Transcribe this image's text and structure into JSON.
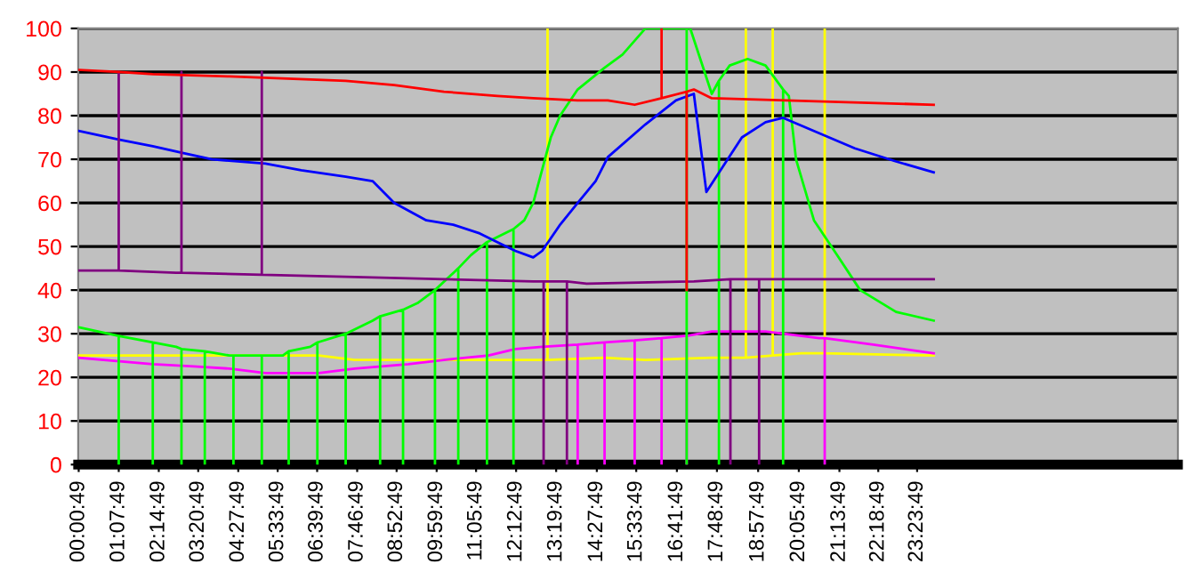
{
  "chart_data": {
    "type": "line",
    "ylim": [
      0,
      100
    ],
    "yticks": [
      0,
      10,
      20,
      30,
      40,
      50,
      60,
      70,
      80,
      90,
      100
    ],
    "xlim": [
      0,
      30.67
    ],
    "xticks": [
      {
        "value": 0.0136,
        "label": "00:00:49"
      },
      {
        "value": 1.1303,
        "label": "01:07:49"
      },
      {
        "value": 2.2469,
        "label": "02:14:49"
      },
      {
        "value": 3.3469,
        "label": "03:20:49"
      },
      {
        "value": 4.4636,
        "label": "04:27:49"
      },
      {
        "value": 5.5636,
        "label": "05:33:49"
      },
      {
        "value": 6.6636,
        "label": "06:39:49"
      },
      {
        "value": 7.7803,
        "label": "07:46:49"
      },
      {
        "value": 8.8803,
        "label": "08:52:49"
      },
      {
        "value": 9.9969,
        "label": "09:59:49"
      },
      {
        "value": 11.0969,
        "label": "11:05:49"
      },
      {
        "value": 12.2136,
        "label": "12:12:49"
      },
      {
        "value": 13.3303,
        "label": "13:19:49"
      },
      {
        "value": 14.4636,
        "label": "14:27:49"
      },
      {
        "value": 15.5636,
        "label": "15:33:49"
      },
      {
        "value": 16.6969,
        "label": "16:41:49"
      },
      {
        "value": 17.8136,
        "label": "17:48:49"
      },
      {
        "value": 18.9636,
        "label": "18:57:49"
      },
      {
        "value": 20.0969,
        "label": "20:05:49"
      },
      {
        "value": 21.2303,
        "label": "21:13:49"
      },
      {
        "value": 22.3136,
        "label": "22:18:49"
      },
      {
        "value": 23.3969,
        "label": "23:23:49"
      }
    ],
    "grid": "y",
    "marker": "none",
    "line_style": "solid",
    "series": [
      {
        "color": "#ffff00",
        "x": [
          0.01,
          6.71,
          7.71,
          13.09,
          13.09,
          13.09,
          14.68,
          15.82,
          17.67,
          18.62,
          18.62,
          18.62,
          19.37,
          19.37,
          19.37,
          20.17,
          20.82,
          20.82,
          20.82,
          23.86
        ],
        "values": [
          25,
          25,
          24,
          24,
          100,
          24,
          24.5,
          24,
          24.5,
          24.5,
          100,
          24.5,
          25,
          100,
          25,
          25.5,
          25.5,
          100,
          25.5,
          25
        ]
      },
      {
        "color": "#ff00ff",
        "x": [
          0.01,
          2.08,
          3.22,
          4.22,
          5.22,
          6.71,
          7.71,
          9.21,
          10.2,
          11.44,
          12.19,
          12.94,
          13.93,
          13.93,
          13.93,
          14.68,
          14.68,
          14.68,
          15.52,
          15.52,
          15.52,
          16.27,
          16.27,
          16.27,
          16.92,
          16.97,
          16.97,
          16.97,
          17.67,
          19.17,
          20.67,
          20.82,
          20.82,
          20.82,
          22.17,
          23.86
        ],
        "values": [
          24.5,
          23,
          22.5,
          22,
          21,
          21,
          22,
          23,
          24,
          25,
          26.5,
          27,
          27.5,
          0,
          27.5,
          28,
          0,
          28,
          28.5,
          0,
          28.5,
          29,
          0,
          29,
          29.5,
          29.5,
          0,
          29.5,
          30.5,
          30.5,
          29,
          29,
          0,
          29,
          27.5,
          25.5
        ]
      },
      {
        "color": "#00ff00",
        "x": [
          0.01,
          1.13,
          1.13,
          1.13,
          2.08,
          2.08,
          2.08,
          2.73,
          2.88,
          2.88,
          2.88,
          3.53,
          3.53,
          3.53,
          4.22,
          4.33,
          4.33,
          4.33,
          5.12,
          5.12,
          5.12,
          5.71,
          5.87,
          5.87,
          5.87,
          6.47,
          6.67,
          6.67,
          6.67,
          7.46,
          7.46,
          7.46,
          8.21,
          8.42,
          8.42,
          8.42,
          9.06,
          9.06,
          9.06,
          9.46,
          9.95,
          9.95,
          9.95,
          10.6,
          10.6,
          10.6,
          10.95,
          11.4,
          11.4,
          11.4,
          12.14,
          12.14,
          12.14,
          12.44,
          12.69,
          13.18,
          13.44,
          13.93,
          14.68,
          15.18,
          15.82,
          16.97,
          16.97,
          16.97,
          17.07,
          17.67,
          17.87,
          17.87,
          17.87,
          18.17,
          18.67,
          19.17,
          19.66,
          19.66,
          19.66,
          19.82,
          20.02,
          20.52,
          21.17,
          21.81,
          22.81,
          23.86
        ],
        "values": [
          31.5,
          29.5,
          0,
          29.5,
          28,
          0,
          28,
          27,
          26.5,
          0,
          26.5,
          26,
          0,
          26,
          25,
          25,
          0,
          25,
          25,
          0,
          25,
          25,
          26,
          0,
          26,
          27,
          28,
          0,
          28,
          30,
          0,
          30,
          33,
          34,
          0,
          34,
          35.5,
          0,
          35.5,
          37,
          40,
          0,
          40,
          45,
          0,
          45,
          48,
          51,
          0,
          51,
          54,
          0,
          54,
          56,
          60,
          75,
          80,
          86,
          91,
          94,
          100,
          100,
          0,
          100,
          100,
          85,
          88,
          0,
          88,
          91.5,
          93,
          91.5,
          86,
          0,
          86,
          84.5,
          70,
          56,
          48,
          40,
          35,
          33
        ]
      },
      {
        "color": "#0000ff",
        "x": [
          0.01,
          1.13,
          2.08,
          2.88,
          3.73,
          5.22,
          6.22,
          7.46,
          8.21,
          8.81,
          9.71,
          10.46,
          11.2,
          11.69,
          12.19,
          12.69,
          12.94,
          13.44,
          13.93,
          14.43,
          14.68,
          14.77,
          15.82,
          16.67,
          17.17,
          17.52,
          18.51,
          19.17,
          19.66,
          20.52,
          21.66,
          22.81,
          23.86
        ],
        "values": [
          76.5,
          74.5,
          73,
          71.5,
          70,
          69,
          67.5,
          66,
          65,
          60,
          56,
          55,
          53,
          51,
          49,
          47.5,
          49,
          55,
          60,
          65,
          69,
          70.5,
          78,
          83.5,
          85,
          62.5,
          75,
          78.5,
          79.5,
          76.5,
          72.5,
          69.5,
          67
        ]
      },
      {
        "color": "#800080",
        "x": [
          0.01,
          1.13,
          1.13,
          1.13,
          2.73,
          2.88,
          2.88,
          2.88,
          5.12,
          5.12,
          5.12,
          7.71,
          10.2,
          12.69,
          12.98,
          12.98,
          12.98,
          13.63,
          13.63,
          13.63,
          14.18,
          17.17,
          18.19,
          18.19,
          18.19,
          18.99,
          18.99,
          18.99,
          23.86
        ],
        "values": [
          44.5,
          44.5,
          90,
          44.5,
          44,
          44,
          90,
          44,
          43.5,
          90,
          43.5,
          43,
          42.5,
          42,
          42,
          0,
          42,
          42,
          0,
          42,
          41.5,
          42,
          42.5,
          0,
          42.5,
          42.5,
          0,
          42.5,
          42.5
        ]
      },
      {
        "color": "#ff0000",
        "x": [
          0.01,
          1.13,
          2.08,
          4.22,
          7.46,
          8.81,
          10.2,
          11.69,
          12.69,
          13.93,
          14.77,
          15.52,
          16.27,
          16.27,
          16.27,
          16.97,
          16.97,
          16.97,
          17.17,
          17.67,
          23.86
        ],
        "values": [
          90.5,
          90,
          89.5,
          89,
          88,
          87,
          85.5,
          84.5,
          84,
          83.5,
          83.5,
          82.5,
          84,
          100,
          84,
          85.5,
          40,
          85.5,
          86,
          84,
          82.5
        ]
      }
    ]
  }
}
